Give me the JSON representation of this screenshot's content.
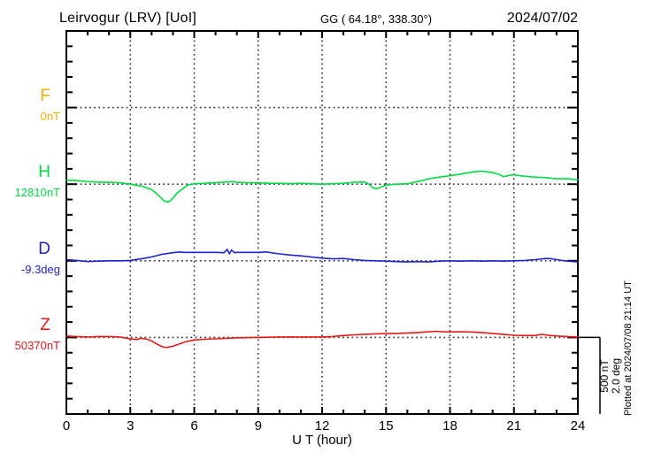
{
  "header": {
    "title": "Leirvogur (LRV)  [UoI]",
    "coords": "GG ( 64.18°, 338.30°)",
    "date": "2024/07/02"
  },
  "footer": {
    "plotted_note": "Plotted at 2024/07/08 21:14 UT"
  },
  "scale_note": {
    "line1": "500 nT",
    "line2": "2.0 deg"
  },
  "chart_data": {
    "type": "line",
    "title": "Leirvogur (LRV) [UoI] magnetogram",
    "xlabel": "U T (hour)",
    "x_range": [
      0,
      24
    ],
    "x_ticks": [
      0,
      3,
      6,
      9,
      12,
      15,
      18,
      21,
      24
    ],
    "grid": "dotted vertical lines every 3 hours; dotted horizontal baseline per channel",
    "legend_position": "left of plot, one colored label per channel",
    "y_scale": {
      "divisions_total": 25,
      "nT_per_division": 100,
      "deg_per_division": 0.4,
      "scale_bar_label": "500 nT / 2.0 deg"
    },
    "series": [
      {
        "name": "F",
        "baseline_label": "0nT",
        "units": "nT offset from baseline",
        "color": "#ffaa00",
        "baseline_division": 5,
        "points": []
      },
      {
        "name": "H",
        "baseline_label": "12810nT",
        "units": "nT offset from baseline",
        "color": "#00dd44",
        "baseline_division": 10,
        "points": [
          [
            0,
            26
          ],
          [
            0.5,
            23
          ],
          [
            1,
            17
          ],
          [
            1.5,
            14
          ],
          [
            2,
            12
          ],
          [
            2.5,
            9
          ],
          [
            3,
            0
          ],
          [
            3.5,
            -12
          ],
          [
            4,
            -35
          ],
          [
            4.3,
            -70
          ],
          [
            4.6,
            -110
          ],
          [
            4.8,
            -116
          ],
          [
            5,
            -92
          ],
          [
            5.2,
            -58
          ],
          [
            5.4,
            -35
          ],
          [
            5.7,
            -6
          ],
          [
            6,
            3
          ],
          [
            6.5,
            6
          ],
          [
            7,
            9
          ],
          [
            7.5,
            14
          ],
          [
            7.8,
            17
          ],
          [
            8,
            12
          ],
          [
            8.5,
            9
          ],
          [
            9,
            9
          ],
          [
            9.5,
            6
          ],
          [
            10,
            6
          ],
          [
            10.5,
            3
          ],
          [
            11,
            6
          ],
          [
            11.5,
            3
          ],
          [
            12,
            0
          ],
          [
            12.5,
            3
          ],
          [
            13,
            6
          ],
          [
            13.5,
            12
          ],
          [
            14,
            14
          ],
          [
            14.2,
            0
          ],
          [
            14.4,
            -26
          ],
          [
            14.6,
            -29
          ],
          [
            14.8,
            -17
          ],
          [
            15,
            -6
          ],
          [
            15.5,
            0
          ],
          [
            16,
            3
          ],
          [
            16.3,
            12
          ],
          [
            16.7,
            23
          ],
          [
            17,
            35
          ],
          [
            17.5,
            46
          ],
          [
            18,
            55
          ],
          [
            18.5,
            66
          ],
          [
            19,
            78
          ],
          [
            19.3,
            84
          ],
          [
            19.6,
            84
          ],
          [
            20,
            75
          ],
          [
            20.3,
            64
          ],
          [
            20.5,
            49
          ],
          [
            20.8,
            58
          ],
          [
            21,
            61
          ],
          [
            21.3,
            55
          ],
          [
            21.7,
            49
          ],
          [
            22,
            46
          ],
          [
            22.5,
            43
          ],
          [
            23,
            35
          ],
          [
            23.5,
            35
          ],
          [
            24,
            29
          ]
        ]
      },
      {
        "name": "D",
        "baseline_label": "-9.3deg",
        "units": "deg offset from baseline",
        "color": "#2222cc",
        "baseline_division": 15,
        "points": [
          [
            0,
            0.03
          ],
          [
            0.5,
            0.01
          ],
          [
            1,
            -0.02
          ],
          [
            1.5,
            -0.01
          ],
          [
            2,
            0
          ],
          [
            2.5,
            0
          ],
          [
            3,
            0.01
          ],
          [
            3.5,
            0.05
          ],
          [
            4,
            0.1
          ],
          [
            4.5,
            0.17
          ],
          [
            5,
            0.21
          ],
          [
            5.3,
            0.23
          ],
          [
            5.5,
            0.22
          ],
          [
            6,
            0.22
          ],
          [
            6.5,
            0.22
          ],
          [
            7,
            0.22
          ],
          [
            7.4,
            0.21
          ],
          [
            7.55,
            0.3
          ],
          [
            7.65,
            0.18
          ],
          [
            7.75,
            0.28
          ],
          [
            7.9,
            0.21
          ],
          [
            8,
            0.22
          ],
          [
            8.5,
            0.22
          ],
          [
            9,
            0.22
          ],
          [
            9.4,
            0.23
          ],
          [
            9.7,
            0.2
          ],
          [
            10,
            0.18
          ],
          [
            10.5,
            0.15
          ],
          [
            11,
            0.13
          ],
          [
            11.5,
            0.1
          ],
          [
            12,
            0.07
          ],
          [
            12.5,
            0.05
          ],
          [
            13,
            0.06
          ],
          [
            13.5,
            0.03
          ],
          [
            14,
            0.01
          ],
          [
            14.5,
            0
          ],
          [
            15,
            -0.01
          ],
          [
            15.5,
            -0.02
          ],
          [
            16,
            -0.03
          ],
          [
            16.5,
            -0.02
          ],
          [
            17,
            -0.03
          ],
          [
            17.5,
            -0.01
          ],
          [
            18,
            0
          ],
          [
            18.5,
            -0.01
          ],
          [
            19,
            0
          ],
          [
            19.5,
            -0.01
          ],
          [
            20,
            0
          ],
          [
            20.5,
            -0.01
          ],
          [
            21,
            0
          ],
          [
            21.5,
            0.01
          ],
          [
            22,
            0.03
          ],
          [
            22.5,
            0.06
          ],
          [
            22.8,
            0.05
          ],
          [
            23,
            0.03
          ],
          [
            23.5,
            -0.01
          ],
          [
            24,
            -0.03
          ]
        ]
      },
      {
        "name": "Z",
        "baseline_label": "50370nT",
        "units": "nT offset from baseline",
        "color": "#e61919",
        "baseline_division": 20,
        "points": [
          [
            0,
            9
          ],
          [
            0.5,
            6
          ],
          [
            1,
            3
          ],
          [
            1.5,
            6
          ],
          [
            2,
            6
          ],
          [
            2.5,
            3
          ],
          [
            3,
            -9
          ],
          [
            3.3,
            -14
          ],
          [
            3.5,
            -6
          ],
          [
            3.8,
            -12
          ],
          [
            4,
            -23
          ],
          [
            4.2,
            -40
          ],
          [
            4.5,
            -61
          ],
          [
            4.7,
            -66
          ],
          [
            5,
            -58
          ],
          [
            5.3,
            -43
          ],
          [
            5.6,
            -29
          ],
          [
            6,
            -17
          ],
          [
            6.5,
            -12
          ],
          [
            7,
            -9
          ],
          [
            7.5,
            -6
          ],
          [
            8,
            -3
          ],
          [
            9,
            0
          ],
          [
            10,
            3
          ],
          [
            11,
            3
          ],
          [
            12,
            3
          ],
          [
            12.5,
            6
          ],
          [
            13,
            12
          ],
          [
            13.5,
            17
          ],
          [
            14,
            20
          ],
          [
            14.5,
            23
          ],
          [
            15,
            26
          ],
          [
            15.5,
            26
          ],
          [
            16,
            29
          ],
          [
            16.5,
            32
          ],
          [
            17,
            37
          ],
          [
            17.3,
            40
          ],
          [
            17.7,
            37
          ],
          [
            18,
            35
          ],
          [
            18.5,
            37
          ],
          [
            19,
            35
          ],
          [
            19.5,
            32
          ],
          [
            20,
            26
          ],
          [
            20.5,
            20
          ],
          [
            21,
            14
          ],
          [
            21.5,
            12
          ],
          [
            22,
            12
          ],
          [
            22.3,
            20
          ],
          [
            22.6,
            14
          ],
          [
            23,
            9
          ],
          [
            23.5,
            6
          ],
          [
            24,
            3
          ]
        ]
      }
    ]
  }
}
